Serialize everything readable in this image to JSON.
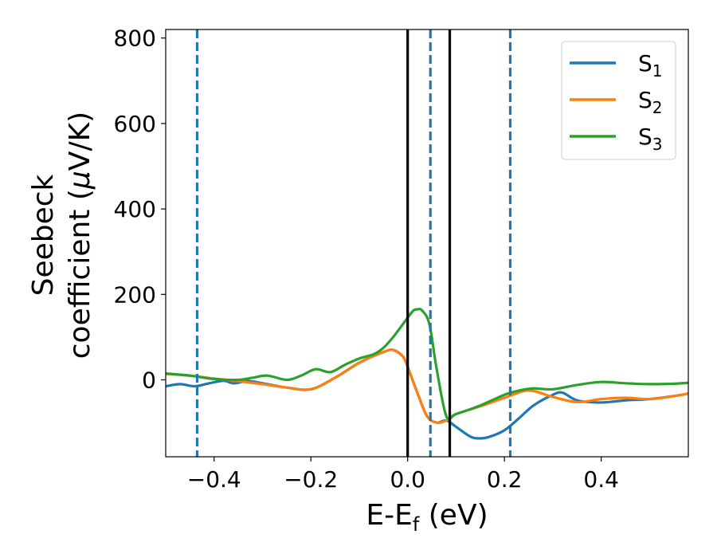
{
  "chart_data": {
    "type": "line",
    "xlabel": {
      "main": "E-E",
      "sub": "f",
      "tail": " (eV)"
    },
    "ylabel": {
      "line1": "Seebeck",
      "line2_pre": "coefficient  (",
      "line2_mu": "μ",
      "line2_post": "V/K)"
    },
    "xlim": [
      -0.5,
      0.58
    ],
    "ylim": [
      -180,
      820
    ],
    "xticks": [
      -0.4,
      -0.2,
      0.0,
      0.2,
      0.4
    ],
    "xtick_labels": [
      "−0.4",
      "−0.2",
      "0.0",
      "0.2",
      "0.4"
    ],
    "yticks": [
      0,
      200,
      400,
      600,
      800
    ],
    "ytick_labels": [
      "0",
      "200",
      "400",
      "600",
      "800"
    ],
    "grid": false,
    "legend_position": "top-right",
    "series": [
      {
        "name": "S",
        "sub": "1",
        "color": "#1f77b4",
        "x": [
          -0.5,
          -0.47,
          -0.44,
          -0.41,
          -0.38,
          -0.36,
          -0.33,
          -0.3,
          -0.25,
          -0.2,
          -0.15,
          -0.1,
          -0.05,
          -0.03,
          -0.01,
          0.0,
          0.02,
          0.04,
          0.06,
          0.08,
          0.1,
          0.13,
          0.15,
          0.17,
          0.2,
          0.23,
          0.26,
          0.3,
          0.32,
          0.35,
          0.4,
          0.45,
          0.5,
          0.55,
          0.58
        ],
        "y": [
          -15,
          -10,
          -15,
          -8,
          -2,
          -8,
          -3,
          -8,
          -18,
          -22,
          5,
          40,
          65,
          70,
          55,
          30,
          -30,
          -85,
          -100,
          -95,
          -110,
          -133,
          -137,
          -133,
          -118,
          -90,
          -60,
          -35,
          -30,
          -48,
          -53,
          -48,
          -45,
          -38,
          -32
        ]
      },
      {
        "name": "S",
        "sub": "2",
        "color": "#ff7f0e",
        "x": [
          -0.5,
          -0.45,
          -0.4,
          -0.35,
          -0.3,
          -0.25,
          -0.2,
          -0.15,
          -0.1,
          -0.05,
          -0.03,
          -0.01,
          0.0,
          0.02,
          0.04,
          0.06,
          0.08,
          0.1,
          0.15,
          0.2,
          0.25,
          0.3,
          0.35,
          0.4,
          0.45,
          0.5,
          0.55,
          0.58
        ],
        "y": [
          14,
          10,
          3,
          -3,
          -10,
          -18,
          -22,
          5,
          40,
          65,
          70,
          55,
          30,
          -30,
          -85,
          -100,
          -95,
          -80,
          -62,
          -42,
          -25,
          -40,
          -52,
          -45,
          -42,
          -45,
          -38,
          -32
        ]
      },
      {
        "name": "S",
        "sub": "3",
        "color": "#2ca02c",
        "x": [
          -0.5,
          -0.45,
          -0.4,
          -0.35,
          -0.32,
          -0.29,
          -0.25,
          -0.22,
          -0.19,
          -0.16,
          -0.13,
          -0.1,
          -0.07,
          -0.05,
          -0.03,
          -0.01,
          0.01,
          0.02,
          0.03,
          0.045,
          0.06,
          0.08,
          0.1,
          0.15,
          0.2,
          0.23,
          0.26,
          0.3,
          0.35,
          0.4,
          0.45,
          0.5,
          0.55,
          0.58
        ],
        "y": [
          15,
          10,
          2,
          0,
          5,
          10,
          0,
          10,
          25,
          18,
          35,
          50,
          60,
          75,
          100,
          130,
          160,
          165,
          162,
          130,
          25,
          -85,
          -80,
          -60,
          -35,
          -25,
          -20,
          -22,
          -12,
          -5,
          -8,
          -10,
          -9,
          -7
        ]
      }
    ],
    "vlines_solid": [
      0.0,
      0.087
    ],
    "vlines_dashed": [
      -0.435,
      0.047,
      0.212
    ],
    "solid_line_color": "#000000",
    "dashed_line_color": "#1f77b4",
    "axis_color": "#000000"
  }
}
